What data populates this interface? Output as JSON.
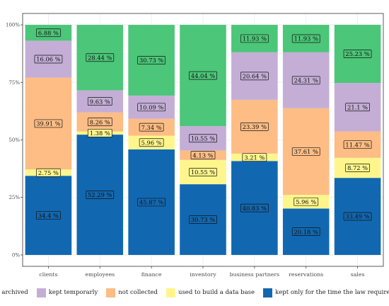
{
  "chart_data": {
    "type": "bar",
    "stacked": true,
    "title": "",
    "xlabel": "",
    "ylabel": "",
    "ylim": [
      0,
      100
    ],
    "yticks": [
      "0%",
      "25%",
      "50%",
      "75%",
      "100%"
    ],
    "categories": [
      "clients",
      "employees",
      "finance",
      "inventory",
      "business partners",
      "reservations",
      "sales"
    ],
    "series": [
      {
        "name": "kept only for the time the law requires it",
        "color": "#1268b0",
        "values": [
          34.4,
          52.29,
          45.87,
          30.73,
          40.83,
          20.18,
          33.49
        ],
        "labels": [
          "34.4 %",
          "52.29 %",
          "45.87 %",
          "30.73 %",
          "40.83 %",
          "20.18 %",
          "33.49 %"
        ]
      },
      {
        "name": "used to build a data base",
        "color": "#fef68c",
        "values": [
          2.75,
          1.38,
          5.96,
          10.55,
          3.21,
          5.96,
          8.72
        ],
        "labels": [
          "2.75 %",
          "1.38 %",
          "5.96 %",
          "10.55 %",
          "3.21 %",
          "5.96 %",
          "8.72 %"
        ]
      },
      {
        "name": "not collected",
        "color": "#fdbd85",
        "values": [
          39.91,
          8.26,
          7.34,
          4.13,
          23.39,
          37.61,
          11.47
        ],
        "labels": [
          "39.91 %",
          "8.26 %",
          "7.34 %",
          "4.13 %",
          "23.39 %",
          "37.61 %",
          "11.47 %"
        ]
      },
      {
        "name": "kept temporarly",
        "color": "#c4aed6",
        "values": [
          16.06,
          9.63,
          10.09,
          10.55,
          20.64,
          24.31,
          21.1
        ],
        "labels": [
          "16.06 %",
          "9.63 %",
          "10.09 %",
          "10.55 %",
          "20.64 %",
          "24.31 %",
          "21.1 %"
        ]
      },
      {
        "name": "archived",
        "color": "#4cc679",
        "values": [
          6.88,
          28.44,
          30.73,
          44.04,
          11.93,
          11.93,
          25.23
        ],
        "labels": [
          "6.88 %",
          "28.44 %",
          "30.73 %",
          "44.04 %",
          "11.93 %",
          "11.93 %",
          "25.23 %"
        ]
      }
    ],
    "legend": {
      "position": "bottom",
      "order": [
        "archived",
        "kept temporarly",
        "not collected",
        "used to build a data base",
        "kept only for the time the law requires it"
      ]
    },
    "grid": true,
    "colors": {
      "panel_border": "#333333",
      "grid": "#ebebeb",
      "label_text": "#111111",
      "axis_text": "#4d4d4d"
    }
  }
}
